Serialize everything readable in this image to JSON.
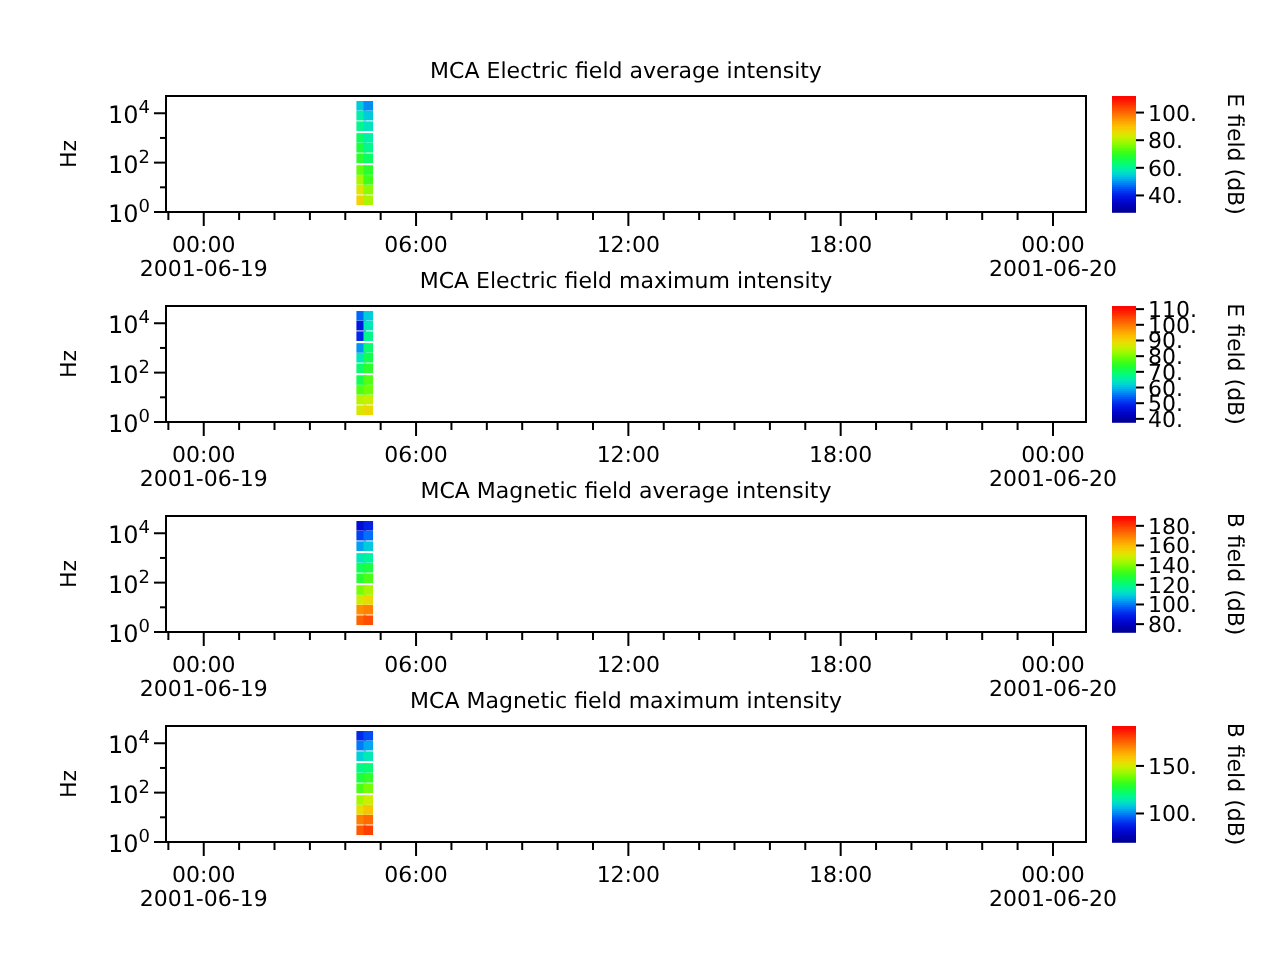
{
  "chart_data": [
    {
      "type": "scatter",
      "title": "MCA  Electric field average intensity",
      "ylabel": "Hz",
      "clabel": "E field (dB)",
      "log": "y",
      "marker": "square",
      "xlim": [
        "2001-06-18T22:56",
        "2001-06-20T00:56"
      ],
      "xticks": [
        {
          "value": "2001-06-18T23:00",
          "label": null
        },
        {
          "value": "2001-06-19T00:00",
          "label": "00:00\n2001-06-19"
        },
        {
          "value": "2001-06-19T01:00",
          "label": null
        },
        {
          "value": "2001-06-19T02:00",
          "label": null
        },
        {
          "value": "2001-06-19T03:00",
          "label": null
        },
        {
          "value": "2001-06-19T04:00",
          "label": null
        },
        {
          "value": "2001-06-19T05:00",
          "label": null
        },
        {
          "value": "2001-06-19T06:00",
          "label": "06:00"
        },
        {
          "value": "2001-06-19T07:00",
          "label": null
        },
        {
          "value": "2001-06-19T08:00",
          "label": null
        },
        {
          "value": "2001-06-19T09:00",
          "label": null
        },
        {
          "value": "2001-06-19T10:00",
          "label": null
        },
        {
          "value": "2001-06-19T11:00",
          "label": null
        },
        {
          "value": "2001-06-19T12:00",
          "label": "12:00"
        },
        {
          "value": "2001-06-19T13:00",
          "label": null
        },
        {
          "value": "2001-06-19T14:00",
          "label": null
        },
        {
          "value": "2001-06-19T15:00",
          "label": null
        },
        {
          "value": "2001-06-19T16:00",
          "label": null
        },
        {
          "value": "2001-06-19T17:00",
          "label": null
        },
        {
          "value": "2001-06-19T18:00",
          "label": "18:00"
        },
        {
          "value": "2001-06-19T19:00",
          "label": null
        },
        {
          "value": "2001-06-19T20:00",
          "label": null
        },
        {
          "value": "2001-06-19T21:00",
          "label": null
        },
        {
          "value": "2001-06-19T22:00",
          "label": null
        },
        {
          "value": "2001-06-19T23:00",
          "label": null
        },
        {
          "value": "2001-06-20T00:00",
          "label": "00:00\n2001-06-20"
        }
      ],
      "ylim": [
        1,
        50000
      ],
      "yticks": [
        {
          "value": 1,
          "label": "10$^{0}$"
        },
        {
          "value": 10,
          "label": null
        },
        {
          "value": 100,
          "label": "10$^{2}$"
        },
        {
          "value": 1000,
          "label": null
        },
        {
          "value": 10000,
          "label": "10$^{4}$"
        }
      ],
      "clim": [
        28,
        112
      ],
      "cticks": [
        {
          "value": 40,
          "label": "40."
        },
        {
          "value": 60,
          "label": "60."
        },
        {
          "value": 80,
          "label": "80."
        },
        {
          "value": 100,
          "label": "100."
        }
      ],
      "series": [
        {
          "x": [
            "2001-06-19T04:27",
            "2001-06-19T04:27",
            "2001-06-19T04:27",
            "2001-06-19T04:27",
            "2001-06-19T04:27",
            "2001-06-19T04:27",
            "2001-06-19T04:27",
            "2001-06-19T04:27",
            "2001-06-19T04:27",
            "2001-06-19T04:27",
            "2001-06-19T04:39",
            "2001-06-19T04:39",
            "2001-06-19T04:39",
            "2001-06-19T04:39",
            "2001-06-19T04:39",
            "2001-06-19T04:39",
            "2001-06-19T04:39",
            "2001-06-19T04:39",
            "2001-06-19T04:39",
            "2001-06-19T04:39"
          ],
          "values": [
            20000,
            8000,
            3000,
            1000,
            400,
            150,
            50,
            20,
            8,
            3,
            20000,
            8000,
            3000,
            1000,
            400,
            150,
            50,
            20,
            8,
            3
          ],
          "cvalues": [
            55,
            60,
            62,
            65,
            68,
            70,
            75,
            80,
            85,
            88,
            50,
            55,
            58,
            60,
            62,
            65,
            70,
            72,
            78,
            80
          ]
        }
      ]
    },
    {
      "type": "scatter",
      "title": "MCA  Electric field maximum intensity",
      "ylabel": "Hz",
      "clabel": "E field (dB)",
      "log": "y",
      "marker": "square",
      "xlim": [
        "2001-06-18T22:56",
        "2001-06-20T00:56"
      ],
      "xticks": [
        {
          "value": "2001-06-18T23:00",
          "label": null
        },
        {
          "value": "2001-06-19T00:00",
          "label": "00:00\n2001-06-19"
        },
        {
          "value": "2001-06-19T01:00",
          "label": null
        },
        {
          "value": "2001-06-19T02:00",
          "label": null
        },
        {
          "value": "2001-06-19T03:00",
          "label": null
        },
        {
          "value": "2001-06-19T04:00",
          "label": null
        },
        {
          "value": "2001-06-19T05:00",
          "label": null
        },
        {
          "value": "2001-06-19T06:00",
          "label": "06:00"
        },
        {
          "value": "2001-06-19T07:00",
          "label": null
        },
        {
          "value": "2001-06-19T08:00",
          "label": null
        },
        {
          "value": "2001-06-19T09:00",
          "label": null
        },
        {
          "value": "2001-06-19T10:00",
          "label": null
        },
        {
          "value": "2001-06-19T11:00",
          "label": null
        },
        {
          "value": "2001-06-19T12:00",
          "label": "12:00"
        },
        {
          "value": "2001-06-19T13:00",
          "label": null
        },
        {
          "value": "2001-06-19T14:00",
          "label": null
        },
        {
          "value": "2001-06-19T15:00",
          "label": null
        },
        {
          "value": "2001-06-19T16:00",
          "label": null
        },
        {
          "value": "2001-06-19T17:00",
          "label": null
        },
        {
          "value": "2001-06-19T18:00",
          "label": "18:00"
        },
        {
          "value": "2001-06-19T19:00",
          "label": null
        },
        {
          "value": "2001-06-19T20:00",
          "label": null
        },
        {
          "value": "2001-06-19T21:00",
          "label": null
        },
        {
          "value": "2001-06-19T22:00",
          "label": null
        },
        {
          "value": "2001-06-19T23:00",
          "label": null
        },
        {
          "value": "2001-06-20T00:00",
          "label": "00:00\n2001-06-20"
        }
      ],
      "ylim": [
        1,
        50000
      ],
      "yticks": [
        {
          "value": 1,
          "label": "10$^{0}$"
        },
        {
          "value": 10,
          "label": null
        },
        {
          "value": 100,
          "label": "10$^{2}$"
        },
        {
          "value": 1000,
          "label": null
        },
        {
          "value": 10000,
          "label": "10$^{4}$"
        }
      ],
      "clim": [
        38,
        112
      ],
      "cticks": [
        {
          "value": 40,
          "label": "40."
        },
        {
          "value": 50,
          "label": "50."
        },
        {
          "value": 60,
          "label": "60."
        },
        {
          "value": 70,
          "label": "70."
        },
        {
          "value": 80,
          "label": "80."
        },
        {
          "value": 90,
          "label": "90."
        },
        {
          "value": 100,
          "label": "100."
        },
        {
          "value": 110,
          "label": "110."
        }
      ],
      "series": [
        {
          "x": [
            "2001-06-19T04:27",
            "2001-06-19T04:27",
            "2001-06-19T04:27",
            "2001-06-19T04:27",
            "2001-06-19T04:27",
            "2001-06-19T04:27",
            "2001-06-19T04:27",
            "2001-06-19T04:27",
            "2001-06-19T04:27",
            "2001-06-19T04:27",
            "2001-06-19T04:39",
            "2001-06-19T04:39",
            "2001-06-19T04:39",
            "2001-06-19T04:39",
            "2001-06-19T04:39",
            "2001-06-19T04:39",
            "2001-06-19T04:39",
            "2001-06-19T04:39",
            "2001-06-19T04:39",
            "2001-06-19T04:39"
          ],
          "values": [
            20000,
            8000,
            3000,
            1000,
            400,
            150,
            50,
            20,
            8,
            3,
            20000,
            8000,
            3000,
            1000,
            400,
            150,
            50,
            20,
            8,
            3
          ],
          "cvalues": [
            55,
            48,
            50,
            58,
            65,
            70,
            72,
            78,
            85,
            88,
            62,
            65,
            68,
            70,
            72,
            75,
            78,
            80,
            86,
            90
          ]
        }
      ]
    },
    {
      "type": "scatter",
      "title": "MCA  Magnetic field average intensity",
      "ylabel": "Hz",
      "clabel": "B field (dB)",
      "log": "y",
      "marker": "square",
      "xlim": [
        "2001-06-18T22:56",
        "2001-06-20T00:56"
      ],
      "xticks": [
        {
          "value": "2001-06-18T23:00",
          "label": null
        },
        {
          "value": "2001-06-19T00:00",
          "label": "00:00\n2001-06-19"
        },
        {
          "value": "2001-06-19T01:00",
          "label": null
        },
        {
          "value": "2001-06-19T02:00",
          "label": null
        },
        {
          "value": "2001-06-19T03:00",
          "label": null
        },
        {
          "value": "2001-06-19T04:00",
          "label": null
        },
        {
          "value": "2001-06-19T05:00",
          "label": null
        },
        {
          "value": "2001-06-19T06:00",
          "label": "06:00"
        },
        {
          "value": "2001-06-19T07:00",
          "label": null
        },
        {
          "value": "2001-06-19T08:00",
          "label": null
        },
        {
          "value": "2001-06-19T09:00",
          "label": null
        },
        {
          "value": "2001-06-19T10:00",
          "label": null
        },
        {
          "value": "2001-06-19T11:00",
          "label": null
        },
        {
          "value": "2001-06-19T12:00",
          "label": "12:00"
        },
        {
          "value": "2001-06-19T13:00",
          "label": null
        },
        {
          "value": "2001-06-19T14:00",
          "label": null
        },
        {
          "value": "2001-06-19T15:00",
          "label": null
        },
        {
          "value": "2001-06-19T16:00",
          "label": null
        },
        {
          "value": "2001-06-19T17:00",
          "label": null
        },
        {
          "value": "2001-06-19T18:00",
          "label": "18:00"
        },
        {
          "value": "2001-06-19T19:00",
          "label": null
        },
        {
          "value": "2001-06-19T20:00",
          "label": null
        },
        {
          "value": "2001-06-19T21:00",
          "label": null
        },
        {
          "value": "2001-06-19T22:00",
          "label": null
        },
        {
          "value": "2001-06-19T23:00",
          "label": null
        },
        {
          "value": "2001-06-20T00:00",
          "label": "00:00\n2001-06-20"
        }
      ],
      "ylim": [
        1,
        50000
      ],
      "yticks": [
        {
          "value": 1,
          "label": "10$^{0}$"
        },
        {
          "value": 10,
          "label": null
        },
        {
          "value": 100,
          "label": "10$^{2}$"
        },
        {
          "value": 1000,
          "label": null
        },
        {
          "value": 10000,
          "label": "10$^{4}$"
        }
      ],
      "clim": [
        72,
        190
      ],
      "cticks": [
        {
          "value": 80,
          "label": "80."
        },
        {
          "value": 100,
          "label": "100."
        },
        {
          "value": 120,
          "label": "120."
        },
        {
          "value": 140,
          "label": "140."
        },
        {
          "value": 160,
          "label": "160."
        },
        {
          "value": 180,
          "label": "180."
        }
      ],
      "series": [
        {
          "x": [
            "2001-06-19T04:27",
            "2001-06-19T04:27",
            "2001-06-19T04:27",
            "2001-06-19T04:27",
            "2001-06-19T04:27",
            "2001-06-19T04:27",
            "2001-06-19T04:27",
            "2001-06-19T04:27",
            "2001-06-19T04:27",
            "2001-06-19T04:27",
            "2001-06-19T04:39",
            "2001-06-19T04:39",
            "2001-06-19T04:39",
            "2001-06-19T04:39",
            "2001-06-19T04:39",
            "2001-06-19T04:39",
            "2001-06-19T04:39",
            "2001-06-19T04:39",
            "2001-06-19T04:39",
            "2001-06-19T04:39"
          ],
          "values": [
            20000,
            8000,
            3000,
            1000,
            400,
            150,
            50,
            20,
            8,
            3,
            20000,
            8000,
            3000,
            1000,
            400,
            150,
            50,
            20,
            8,
            3
          ],
          "cvalues": [
            85,
            95,
            105,
            115,
            125,
            130,
            140,
            150,
            168,
            175,
            90,
            100,
            110,
            118,
            128,
            135,
            145,
            155,
            170,
            178
          ]
        }
      ]
    },
    {
      "type": "scatter",
      "title": "MCA  Magnetic field maximum intensity",
      "ylabel": "Hz",
      "clabel": "B field (dB)",
      "log": "y",
      "marker": "square",
      "xlim": [
        "2001-06-18T22:56",
        "2001-06-20T00:56"
      ],
      "xticks": [
        {
          "value": "2001-06-18T23:00",
          "label": null
        },
        {
          "value": "2001-06-19T00:00",
          "label": "00:00\n2001-06-19"
        },
        {
          "value": "2001-06-19T01:00",
          "label": null
        },
        {
          "value": "2001-06-19T02:00",
          "label": null
        },
        {
          "value": "2001-06-19T03:00",
          "label": null
        },
        {
          "value": "2001-06-19T04:00",
          "label": null
        },
        {
          "value": "2001-06-19T05:00",
          "label": null
        },
        {
          "value": "2001-06-19T06:00",
          "label": "06:00"
        },
        {
          "value": "2001-06-19T07:00",
          "label": null
        },
        {
          "value": "2001-06-19T08:00",
          "label": null
        },
        {
          "value": "2001-06-19T09:00",
          "label": null
        },
        {
          "value": "2001-06-19T10:00",
          "label": null
        },
        {
          "value": "2001-06-19T11:00",
          "label": null
        },
        {
          "value": "2001-06-19T12:00",
          "label": "12:00"
        },
        {
          "value": "2001-06-19T13:00",
          "label": null
        },
        {
          "value": "2001-06-19T14:00",
          "label": null
        },
        {
          "value": "2001-06-19T15:00",
          "label": null
        },
        {
          "value": "2001-06-19T16:00",
          "label": null
        },
        {
          "value": "2001-06-19T17:00",
          "label": null
        },
        {
          "value": "2001-06-19T18:00",
          "label": "18:00"
        },
        {
          "value": "2001-06-19T19:00",
          "label": null
        },
        {
          "value": "2001-06-19T20:00",
          "label": null
        },
        {
          "value": "2001-06-19T21:00",
          "label": null
        },
        {
          "value": "2001-06-19T22:00",
          "label": null
        },
        {
          "value": "2001-06-19T23:00",
          "label": null
        },
        {
          "value": "2001-06-20T00:00",
          "label": "00:00\n2001-06-20"
        }
      ],
      "ylim": [
        1,
        50000
      ],
      "yticks": [
        {
          "value": 1,
          "label": "10$^{0}$"
        },
        {
          "value": 10,
          "label": null
        },
        {
          "value": 100,
          "label": "10$^{2}$"
        },
        {
          "value": 1000,
          "label": null
        },
        {
          "value": 10000,
          "label": "10$^{4}$"
        }
      ],
      "clim": [
        70,
        192
      ],
      "cticks": [
        {
          "value": 100,
          "label": "100."
        },
        {
          "value": 150,
          "label": "150."
        }
      ],
      "series": [
        {
          "x": [
            "2001-06-19T04:27",
            "2001-06-19T04:27",
            "2001-06-19T04:27",
            "2001-06-19T04:27",
            "2001-06-19T04:27",
            "2001-06-19T04:27",
            "2001-06-19T04:27",
            "2001-06-19T04:27",
            "2001-06-19T04:27",
            "2001-06-19T04:27",
            "2001-06-19T04:39",
            "2001-06-19T04:39",
            "2001-06-19T04:39",
            "2001-06-19T04:39",
            "2001-06-19T04:39",
            "2001-06-19T04:39",
            "2001-06-19T04:39",
            "2001-06-19T04:39",
            "2001-06-19T04:39",
            "2001-06-19T04:39"
          ],
          "values": [
            20000,
            8000,
            3000,
            1000,
            400,
            150,
            50,
            20,
            8,
            3,
            20000,
            8000,
            3000,
            1000,
            400,
            150,
            50,
            20,
            8,
            3
          ],
          "cvalues": [
            90,
            100,
            110,
            120,
            128,
            135,
            145,
            155,
            172,
            178,
            95,
            105,
            115,
            122,
            132,
            140,
            150,
            160,
            175,
            182
          ]
        }
      ]
    }
  ]
}
